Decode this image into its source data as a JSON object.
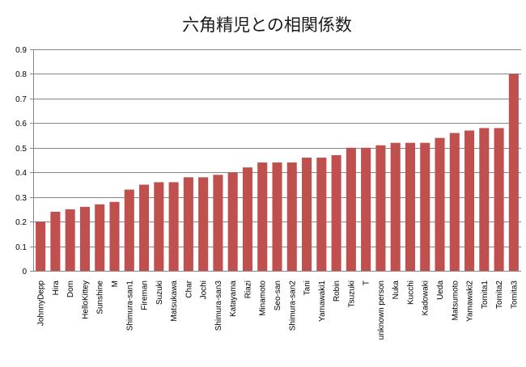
{
  "chart_data": {
    "type": "bar",
    "title": "六角精児との相関係数",
    "xlabel": "",
    "ylabel": "",
    "ylim": [
      0,
      0.9
    ],
    "yticks": [
      "0",
      "0.1",
      "0.2",
      "0.3",
      "0.4",
      "0.5",
      "0.6",
      "0.7",
      "0.8",
      "0.9"
    ],
    "grid": true,
    "legend": "none",
    "bar_color": "#c0504d",
    "categories": [
      "JohnnyDepp",
      "Hira",
      "Dom",
      "HelloKittey",
      "Sunshine",
      "M",
      "Shimura-san1",
      "Fireman",
      "Suzuki",
      "Matsukawa",
      "Char",
      "Jochi",
      "Shimura-san3",
      "Katayama",
      "Riazi",
      "Minamoto",
      "Seo-san",
      "Shimura-san2",
      "Tani",
      "Yamawaki1",
      "Robin",
      "Tsuzuki",
      "T",
      "unknown person",
      "Nuka",
      "Kucchi",
      "Kadowaki",
      "Ueda",
      "Matsumoto",
      "Yamawaki2",
      "Tomita1",
      "Tomita2",
      "Tomita3"
    ],
    "values": [
      0.2,
      0.24,
      0.25,
      0.26,
      0.27,
      0.28,
      0.33,
      0.35,
      0.36,
      0.36,
      0.38,
      0.38,
      0.39,
      0.4,
      0.42,
      0.44,
      0.44,
      0.44,
      0.46,
      0.46,
      0.47,
      0.5,
      0.5,
      0.51,
      0.52,
      0.52,
      0.52,
      0.54,
      0.56,
      0.57,
      0.58,
      0.58,
      0.8
    ]
  }
}
